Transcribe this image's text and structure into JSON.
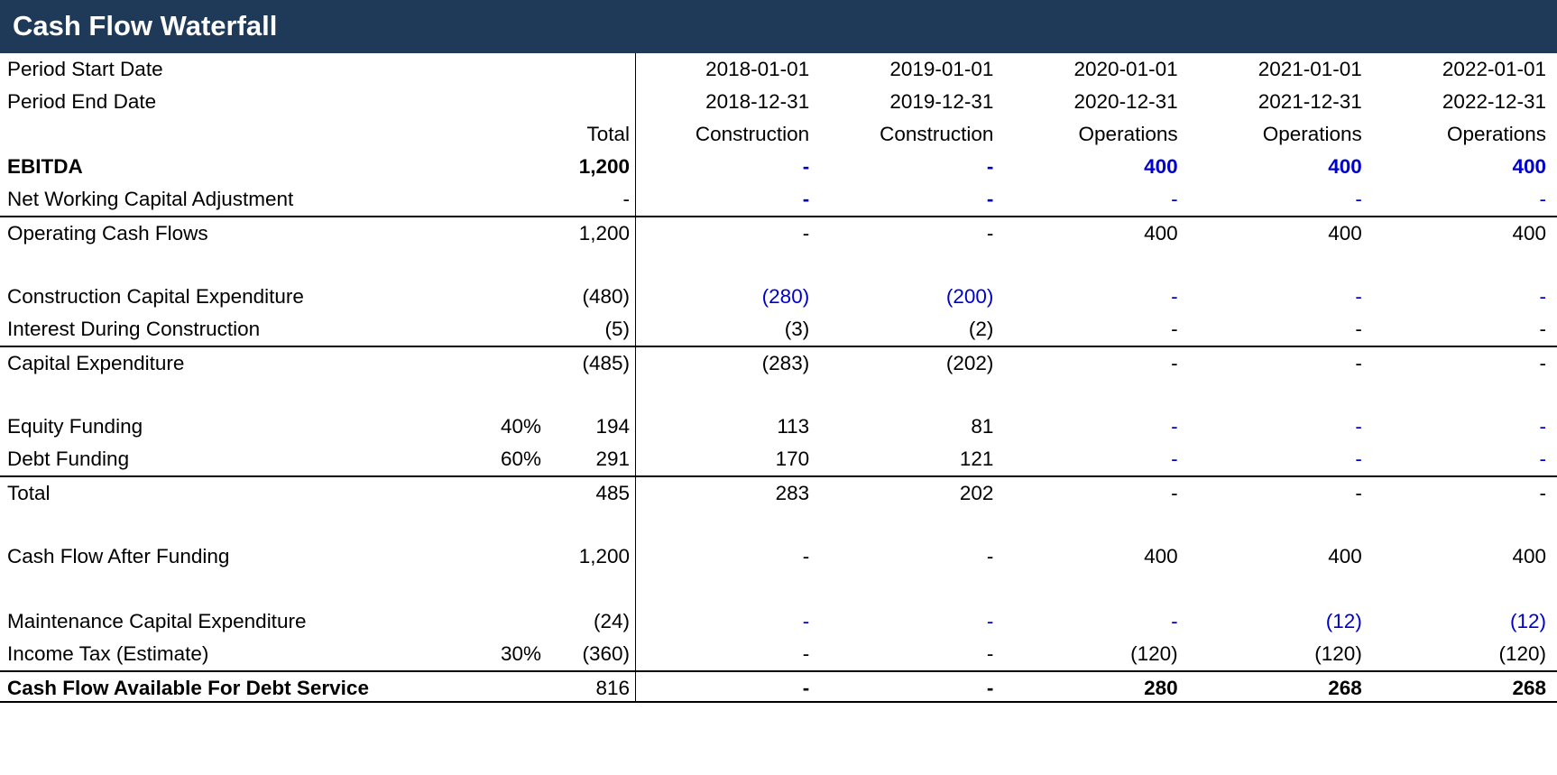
{
  "title": "Cash Flow Waterfall",
  "colors": {
    "header_bg": "#1F3A59",
    "input_blue": "#0000CC",
    "text_black": "#000000"
  },
  "rows": [
    {
      "name": "period-start-date",
      "label": "Period Start Date",
      "pct": "",
      "total": "",
      "cells": [
        {
          "t": "2018-01-01"
        },
        {
          "t": "2019-01-01"
        },
        {
          "t": "2020-01-01"
        },
        {
          "t": "2021-01-01"
        },
        {
          "t": "2022-01-01"
        }
      ]
    },
    {
      "name": "period-end-date",
      "label": "Period End Date",
      "pct": "",
      "total": "",
      "cells": [
        {
          "t": "2018-12-31"
        },
        {
          "t": "2019-12-31"
        },
        {
          "t": "2020-12-31"
        },
        {
          "t": "2021-12-31"
        },
        {
          "t": "2022-12-31"
        }
      ]
    },
    {
      "name": "column-header",
      "label": "",
      "pct": "",
      "total": "Total",
      "cells": [
        {
          "t": "Construction"
        },
        {
          "t": "Construction"
        },
        {
          "t": "Operations"
        },
        {
          "t": "Operations"
        },
        {
          "t": "Operations"
        }
      ]
    },
    {
      "name": "ebitda",
      "label": "EBITDA",
      "label_bold": true,
      "pct": "",
      "total": "1,200",
      "total_bold": true,
      "cells": [
        {
          "t": "-",
          "blue": true,
          "bold": true
        },
        {
          "t": "-",
          "blue": true,
          "bold": true
        },
        {
          "t": "400",
          "blue": true,
          "bold": true
        },
        {
          "t": "400",
          "blue": true,
          "bold": true
        },
        {
          "t": "400",
          "blue": true,
          "bold": true
        }
      ]
    },
    {
      "name": "net-working-capital-adjustment",
      "label": "Net Working Capital Adjustment",
      "pct": "",
      "total": "-",
      "cells": [
        {
          "t": "-",
          "blue": true,
          "bold": true
        },
        {
          "t": "-",
          "blue": true,
          "bold": true
        },
        {
          "t": "-",
          "blue": true
        },
        {
          "t": "-",
          "blue": true
        },
        {
          "t": "-",
          "blue": true
        }
      ]
    },
    {
      "name": "operating-cash-flows",
      "label": "Operating Cash Flows",
      "pct": "",
      "total": "1,200",
      "border_top": true,
      "cells": [
        {
          "t": "-"
        },
        {
          "t": "-"
        },
        {
          "t": "400"
        },
        {
          "t": "400"
        },
        {
          "t": "400"
        }
      ]
    },
    {
      "name": "blank",
      "blank": true
    },
    {
      "name": "construction-capital-expenditure",
      "label": "Construction Capital Expenditure",
      "pct": "",
      "total": "(480)",
      "cells": [
        {
          "t": "(280)",
          "blue": true
        },
        {
          "t": "(200)",
          "blue": true
        },
        {
          "t": "-",
          "blue": true
        },
        {
          "t": "-",
          "blue": true
        },
        {
          "t": "-",
          "blue": true
        }
      ]
    },
    {
      "name": "interest-during-construction",
      "label": "Interest During Construction",
      "pct": "",
      "total": "(5)",
      "cells": [
        {
          "t": "(3)"
        },
        {
          "t": "(2)"
        },
        {
          "t": "-"
        },
        {
          "t": "-"
        },
        {
          "t": "-"
        }
      ]
    },
    {
      "name": "capital-expenditure",
      "label": "Capital Expenditure",
      "pct": "",
      "total": "(485)",
      "border_top": true,
      "cells": [
        {
          "t": "(283)"
        },
        {
          "t": "(202)"
        },
        {
          "t": "-"
        },
        {
          "t": "-"
        },
        {
          "t": "-"
        }
      ]
    },
    {
      "name": "blank",
      "blank": true
    },
    {
      "name": "equity-funding",
      "label": "Equity Funding",
      "pct": "40%",
      "total": "194",
      "cells": [
        {
          "t": "113"
        },
        {
          "t": "81"
        },
        {
          "t": "-",
          "blue": true
        },
        {
          "t": "-",
          "blue": true
        },
        {
          "t": "-",
          "blue": true
        }
      ]
    },
    {
      "name": "debt-funding",
      "label": "Debt Funding",
      "pct": "60%",
      "total": "291",
      "cells": [
        {
          "t": "170"
        },
        {
          "t": "121"
        },
        {
          "t": "-",
          "blue": true
        },
        {
          "t": "-",
          "blue": true
        },
        {
          "t": "-",
          "blue": true
        }
      ]
    },
    {
      "name": "total-funding",
      "label": "Total",
      "pct": "",
      "total": "485",
      "border_top": true,
      "cells": [
        {
          "t": "283"
        },
        {
          "t": "202"
        },
        {
          "t": "-"
        },
        {
          "t": "-"
        },
        {
          "t": "-"
        }
      ]
    },
    {
      "name": "blank",
      "blank": true
    },
    {
      "name": "cash-flow-after-funding",
      "label": "Cash Flow After Funding",
      "pct": "",
      "total": "1,200",
      "cells": [
        {
          "t": "-"
        },
        {
          "t": "-"
        },
        {
          "t": "400"
        },
        {
          "t": "400"
        },
        {
          "t": "400"
        }
      ]
    },
    {
      "name": "blank",
      "blank": true
    },
    {
      "name": "maintenance-capital-expenditure",
      "label": "Maintenance Capital Expenditure",
      "pct": "",
      "total": "(24)",
      "cells": [
        {
          "t": "-",
          "blue": true
        },
        {
          "t": "-",
          "blue": true
        },
        {
          "t": "-",
          "blue": true
        },
        {
          "t": "(12)",
          "blue": true
        },
        {
          "t": "(12)",
          "blue": true
        }
      ]
    },
    {
      "name": "income-tax-estimate",
      "label": "Income Tax (Estimate)",
      "pct": "30%",
      "total": "(360)",
      "cells": [
        {
          "t": "-"
        },
        {
          "t": "-"
        },
        {
          "t": "(120)"
        },
        {
          "t": "(120)"
        },
        {
          "t": "(120)"
        }
      ]
    },
    {
      "name": "cash-flow-available-for-debt-service",
      "label": "Cash Flow Available For Debt Service",
      "label_bold": true,
      "pct": "",
      "total": "816",
      "border_top": true,
      "border_bottom": true,
      "cells": [
        {
          "t": "-",
          "bold": true
        },
        {
          "t": "-",
          "bold": true
        },
        {
          "t": "280",
          "bold": true
        },
        {
          "t": "268",
          "bold": true
        },
        {
          "t": "268",
          "bold": true
        }
      ]
    }
  ]
}
